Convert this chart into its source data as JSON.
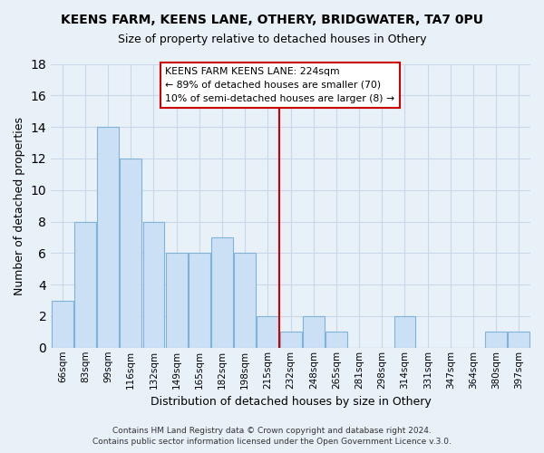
{
  "title": "KEENS FARM, KEENS LANE, OTHERY, BRIDGWATER, TA7 0PU",
  "subtitle": "Size of property relative to detached houses in Othery",
  "xlabel": "Distribution of detached houses by size in Othery",
  "ylabel": "Number of detached properties",
  "footer1": "Contains HM Land Registry data © Crown copyright and database right 2024.",
  "footer2": "Contains public sector information licensed under the Open Government Licence v.3.0.",
  "bar_labels": [
    "66sqm",
    "83sqm",
    "99sqm",
    "116sqm",
    "132sqm",
    "149sqm",
    "165sqm",
    "182sqm",
    "198sqm",
    "215sqm",
    "232sqm",
    "248sqm",
    "265sqm",
    "281sqm",
    "298sqm",
    "314sqm",
    "331sqm",
    "347sqm",
    "364sqm",
    "380sqm",
    "397sqm"
  ],
  "bar_values": [
    3,
    8,
    14,
    12,
    8,
    6,
    6,
    7,
    6,
    2,
    1,
    2,
    1,
    0,
    0,
    2,
    0,
    0,
    0,
    1,
    1
  ],
  "bar_color": "#cce0f5",
  "bar_edge_color": "#7fb3d8",
  "vline_x": 9.5,
  "vline_color": "#cc0000",
  "annotation_title": "KEENS FARM KEENS LANE: 224sqm",
  "annotation_line1": "← 89% of detached houses are smaller (70)",
  "annotation_line2": "10% of semi-detached houses are larger (8) →",
  "annotation_box_color": "white",
  "annotation_box_edge_color": "#cc0000",
  "ylim": [
    0,
    18
  ],
  "yticks": [
    0,
    2,
    4,
    6,
    8,
    10,
    12,
    14,
    16,
    18
  ],
  "grid_color": "#c8d8e8",
  "ax_background_color": "#e8f0f8",
  "fig_background_color": "#e8f0f8"
}
